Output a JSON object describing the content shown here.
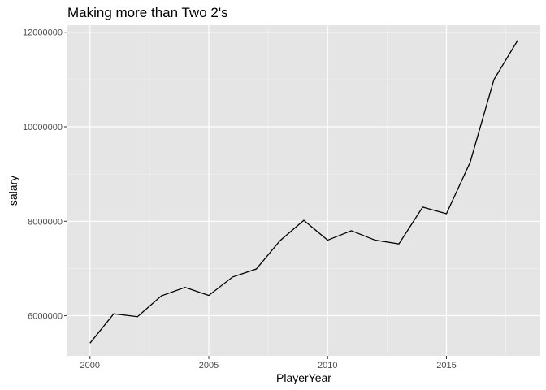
{
  "chart_data": {
    "type": "line",
    "title": "Making more than Two 2's",
    "xlabel": "PlayerYear",
    "ylabel": "salary",
    "x": [
      2000,
      2001,
      2002,
      2003,
      2004,
      2005,
      2006,
      2007,
      2008,
      2009,
      2010,
      2011,
      2012,
      2013,
      2014,
      2015,
      2016,
      2017,
      2018
    ],
    "series": [
      {
        "values": [
          5420000,
          6040000,
          5980000,
          6420000,
          6600000,
          6430000,
          6820000,
          6990000,
          7590000,
          8020000,
          7600000,
          7800000,
          7600000,
          7520000,
          8300000,
          8160000,
          9250000,
          11000000,
          11830000
        ]
      }
    ],
    "xlim": [
      1999.05,
      2018.95
    ],
    "ylim": [
      5150000,
      12150000
    ],
    "x_ticks": [
      2000,
      2005,
      2010,
      2015
    ],
    "x_tick_labels": [
      "2000",
      "2005",
      "2010",
      "2015"
    ],
    "y_ticks": [
      6000000,
      8000000,
      10000000,
      12000000
    ],
    "y_tick_labels": [
      "6000000",
      "8000000",
      "10000000",
      "12000000"
    ],
    "grid": true,
    "colors": {
      "panel": "#e5e5e5",
      "grid_major": "#ffffff",
      "grid_minor": "#f2f2f2",
      "line": "#000000",
      "tick": "#333333"
    }
  }
}
